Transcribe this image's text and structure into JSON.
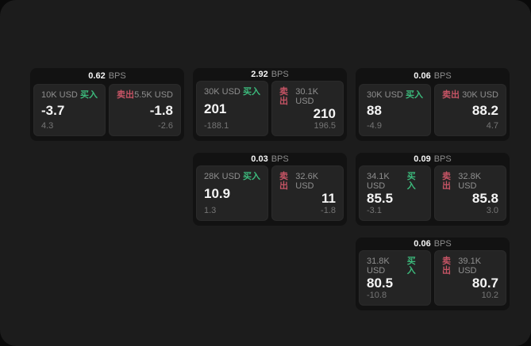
{
  "labels": {
    "bps": "BPS",
    "buy": "买入",
    "sell": "卖出"
  },
  "colors": {
    "background": "#0a0a0a",
    "surface": "#1c1c1c",
    "card": "#121212",
    "panel": "#242424",
    "buy_green": "#3cba7c",
    "sell_red": "#c65465",
    "value_white": "#f5f5f5",
    "label_gray": "#8f8f8f"
  },
  "cards": [
    {
      "bps": "0.62",
      "buy": {
        "amount": "10K USD",
        "value": "-3.7",
        "delta": "4.3"
      },
      "sell": {
        "amount": "5.5K USD",
        "value": "-1.8",
        "delta": "-2.6"
      }
    },
    {
      "bps": "2.92",
      "buy": {
        "amount": "30K USD",
        "value": "201",
        "delta": "-188.1"
      },
      "sell": {
        "amount": "30.1K USD",
        "value": "210",
        "delta": "196.5"
      }
    },
    {
      "bps": "0.06",
      "buy": {
        "amount": "30K USD",
        "value": "88",
        "delta": "-4.9"
      },
      "sell": {
        "amount": "30K USD",
        "value": "88.2",
        "delta": "4.7"
      }
    },
    {
      "bps": "0.03",
      "buy": {
        "amount": "28K USD",
        "value": "10.9",
        "delta": "1.3"
      },
      "sell": {
        "amount": "32.6K USD",
        "value": "11",
        "delta": "-1.8"
      }
    },
    {
      "bps": "0.09",
      "buy": {
        "amount": "34.1K USD",
        "value": "85.5",
        "delta": "-3.1"
      },
      "sell": {
        "amount": "32.8K USD",
        "value": "85.8",
        "delta": "3.0"
      }
    },
    {
      "bps": "0.06",
      "buy": {
        "amount": "31.8K USD",
        "value": "80.5",
        "delta": "-10.8"
      },
      "sell": {
        "amount": "39.1K USD",
        "value": "80.7",
        "delta": "10.2"
      }
    }
  ]
}
